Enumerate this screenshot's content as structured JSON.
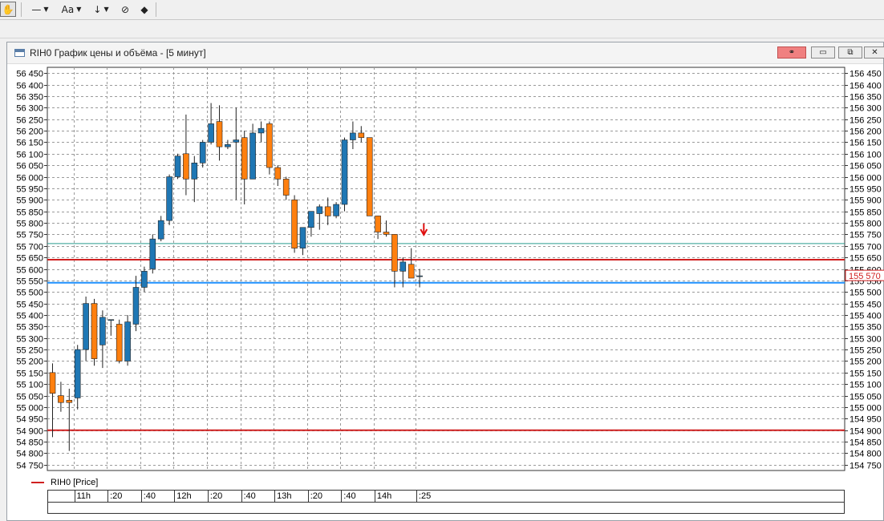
{
  "toolbar": {
    "hand_icon": "hand-icon",
    "line_style_icon": "line-style-icon",
    "font_label": "Aa",
    "arrow_icon": "arrow-down-icon",
    "hide_icon": "eye-slash-icon",
    "eraser_icon": "eraser-icon"
  },
  "window": {
    "title": "RIH0 График цены и объёма - [5 минут]",
    "buttons": [
      "link",
      "minimize",
      "maximize",
      "close"
    ]
  },
  "legend": {
    "series_label": "RIH0 [Price]",
    "color": "#d02020"
  },
  "colors": {
    "up": "#1f77b4",
    "down": "#ff7f0e",
    "level_red": "#d02020",
    "level_blue": "#1e90ff",
    "level_teal": "#2a9d8f"
  },
  "chart_data": {
    "type": "candlestick",
    "interval": "5 минут",
    "ylim": [
      54725,
      56475
    ],
    "left_axis_ticks": [
      "56 450",
      "56 400",
      "56 350",
      "56 300",
      "56 250",
      "56 200",
      "56 150",
      "56 100",
      "56 050",
      "56 000",
      "55 950",
      "55 900",
      "55 850",
      "55 800",
      "55 750",
      "55 700",
      "55 650",
      "55 600",
      "55 550",
      "55 500",
      "55 450",
      "55 400",
      "55 350",
      "55 300",
      "55 250",
      "55 200",
      "55 150",
      "55 100",
      "55 050",
      "55 000",
      "54 950",
      "54 900",
      "54 850",
      "54 800",
      "54 750"
    ],
    "left_axis_values": [
      56450,
      56400,
      56350,
      56300,
      56250,
      56200,
      56150,
      56100,
      56050,
      56000,
      55950,
      55900,
      55850,
      55800,
      55750,
      55700,
      55650,
      55600,
      55550,
      55500,
      55450,
      55400,
      55350,
      55300,
      55250,
      55200,
      55150,
      55100,
      55050,
      55000,
      54950,
      54900,
      54850,
      54800,
      54750
    ],
    "right_axis_ticks": [
      "156 450",
      "156 400",
      "156 350",
      "156 300",
      "156 250",
      "156 200",
      "156 150",
      "156 100",
      "156 050",
      "156 000",
      "155 950",
      "155 900",
      "155 850",
      "155 800",
      "155 750",
      "155 700",
      "155 650",
      "155 600",
      "155 550",
      "155 500",
      "155 450",
      "155 400",
      "155 350",
      "155 300",
      "155 250",
      "155 200",
      "155 150",
      "155 100",
      "155 050",
      "155 000",
      "154 950",
      "154 900",
      "154 850",
      "154 800",
      "154 750"
    ],
    "current_price_label": "155 570",
    "current_price": 55570,
    "time_labels": [
      {
        "label": "11h",
        "index": 2.5
      },
      {
        "label": ":20",
        "index": 6.5
      },
      {
        "label": ":40",
        "index": 10.5
      },
      {
        "label": "12h",
        "index": 14.5
      },
      {
        "label": ":20",
        "index": 18.5
      },
      {
        "label": ":40",
        "index": 22.5
      },
      {
        "label": "13h",
        "index": 26.5
      },
      {
        "label": ":20",
        "index": 30.5
      },
      {
        "label": ":40",
        "index": 34.5
      },
      {
        "label": "14h",
        "index": 38.5
      },
      {
        "label": ":25",
        "index": 43.5
      }
    ],
    "candles": [
      {
        "o": 55150,
        "h": 55190,
        "l": 54870,
        "c": 55060
      },
      {
        "o": 55050,
        "h": 55110,
        "l": 54980,
        "c": 55020
      },
      {
        "o": 55030,
        "h": 55080,
        "l": 54810,
        "c": 55020
      },
      {
        "o": 55040,
        "h": 55270,
        "l": 54990,
        "c": 55250
      },
      {
        "o": 55250,
        "h": 55480,
        "l": 55200,
        "c": 55450
      },
      {
        "o": 55450,
        "h": 55470,
        "l": 55180,
        "c": 55210
      },
      {
        "o": 55270,
        "h": 55420,
        "l": 55170,
        "c": 55390
      },
      {
        "o": 55380,
        "h": 55380,
        "l": 55310,
        "c": 55380
      },
      {
        "o": 55360,
        "h": 55380,
        "l": 55190,
        "c": 55200
      },
      {
        "o": 55200,
        "h": 55400,
        "l": 55180,
        "c": 55370
      },
      {
        "o": 55360,
        "h": 55570,
        "l": 55330,
        "c": 55520
      },
      {
        "o": 55520,
        "h": 55610,
        "l": 55500,
        "c": 55590
      },
      {
        "o": 55600,
        "h": 55750,
        "l": 55580,
        "c": 55730
      },
      {
        "o": 55730,
        "h": 55830,
        "l": 55720,
        "c": 55810
      },
      {
        "o": 55810,
        "h": 56010,
        "l": 55790,
        "c": 56000
      },
      {
        "o": 56000,
        "h": 56100,
        "l": 55990,
        "c": 56090
      },
      {
        "o": 56100,
        "h": 56270,
        "l": 55920,
        "c": 55990
      },
      {
        "o": 55990,
        "h": 56090,
        "l": 55890,
        "c": 56060
      },
      {
        "o": 56060,
        "h": 56160,
        "l": 56040,
        "c": 56150
      },
      {
        "o": 56150,
        "h": 56320,
        "l": 56140,
        "c": 56230
      },
      {
        "o": 56240,
        "h": 56310,
        "l": 56070,
        "c": 56130
      },
      {
        "o": 56130,
        "h": 56160,
        "l": 56120,
        "c": 56140
      },
      {
        "o": 56150,
        "h": 56300,
        "l": 55900,
        "c": 56160
      },
      {
        "o": 56170,
        "h": 56200,
        "l": 55880,
        "c": 55990
      },
      {
        "o": 55990,
        "h": 56230,
        "l": 55990,
        "c": 56190
      },
      {
        "o": 56190,
        "h": 56240,
        "l": 56150,
        "c": 56210
      },
      {
        "o": 56230,
        "h": 56240,
        "l": 56010,
        "c": 56040
      },
      {
        "o": 56040,
        "h": 56050,
        "l": 55960,
        "c": 55990
      },
      {
        "o": 55990,
        "h": 56000,
        "l": 55900,
        "c": 55920
      },
      {
        "o": 55900,
        "h": 55920,
        "l": 55670,
        "c": 55690
      },
      {
        "o": 55690,
        "h": 55770,
        "l": 55660,
        "c": 55780
      },
      {
        "o": 55780,
        "h": 55850,
        "l": 55740,
        "c": 55850
      },
      {
        "o": 55840,
        "h": 55880,
        "l": 55770,
        "c": 55870
      },
      {
        "o": 55870,
        "h": 55910,
        "l": 55790,
        "c": 55830
      },
      {
        "o": 55830,
        "h": 55890,
        "l": 55820,
        "c": 55880
      },
      {
        "o": 55880,
        "h": 56170,
        "l": 55850,
        "c": 56160
      },
      {
        "o": 56160,
        "h": 56240,
        "l": 56120,
        "c": 56190
      },
      {
        "o": 56190,
        "h": 56220,
        "l": 56150,
        "c": 56170
      },
      {
        "o": 56170,
        "h": 56170,
        "l": 55830,
        "c": 55830
      },
      {
        "o": 55830,
        "h": 55830,
        "l": 55730,
        "c": 55760
      },
      {
        "o": 55760,
        "h": 55810,
        "l": 55740,
        "c": 55750
      },
      {
        "o": 55750,
        "h": 55750,
        "l": 55520,
        "c": 55590
      },
      {
        "o": 55590,
        "h": 55650,
        "l": 55520,
        "c": 55630
      },
      {
        "o": 55620,
        "h": 55690,
        "l": 55560,
        "c": 55560
      },
      {
        "o": 55570,
        "h": 55600,
        "l": 55520,
        "c": 55570
      }
    ],
    "levels": [
      {
        "value": 55710,
        "color": "#2a9d8f",
        "width": 1
      },
      {
        "value": 55640,
        "color": "#d02020",
        "width": 2
      },
      {
        "value": 55540,
        "color": "#1e90ff",
        "width": 2
      },
      {
        "value": 54900,
        "color": "#d02020",
        "width": 2
      }
    ],
    "marker": {
      "type": "arrow-down",
      "index": 44.5,
      "value": 55755,
      "color": "#e01010"
    },
    "grid": true
  }
}
